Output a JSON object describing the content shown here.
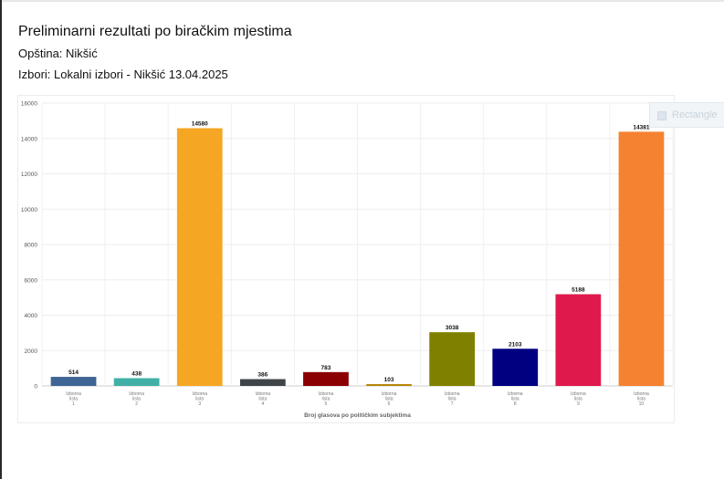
{
  "page": {
    "title": "Preliminarni rezultati po biračkim mjestima",
    "municipality": "Opština: Nikšić",
    "election": "Izbori: Lokalni izbori - Nikšić 13.04.2025"
  },
  "legend_overlay": {
    "label": "Rectangle"
  },
  "chart_data": {
    "type": "bar",
    "categories": [
      [
        "Izborna",
        "lista",
        "1"
      ],
      [
        "Izborna",
        "lista",
        "2"
      ],
      [
        "Izborna",
        "lista",
        "3"
      ],
      [
        "Izborna",
        "lista",
        "4"
      ],
      [
        "Izborna",
        "lista",
        "5"
      ],
      [
        "Izborna",
        "lista",
        "6"
      ],
      [
        "Izborna",
        "lista",
        "7"
      ],
      [
        "Izborna",
        "lista",
        "8"
      ],
      [
        "Izborna",
        "lista",
        "9"
      ],
      [
        "Izborna",
        "lista",
        "10"
      ]
    ],
    "values": [
      514,
      438,
      14580,
      386,
      783,
      103,
      3038,
      2103,
      5188,
      14381
    ],
    "colors": [
      "#3e6594",
      "#40b0a6",
      "#f5a623",
      "#404549",
      "#8b0000",
      "#b8860b",
      "#808000",
      "#000080",
      "#e0194d",
      "#f58231"
    ],
    "title": "",
    "xlabel": "Broj glasova po političkim subjektima",
    "ylabel": "",
    "ylim": [
      0,
      16000
    ],
    "yticks": [
      0,
      2000,
      4000,
      6000,
      8000,
      10000,
      12000,
      14000,
      16000
    ],
    "grid": true,
    "data_labels": true
  }
}
